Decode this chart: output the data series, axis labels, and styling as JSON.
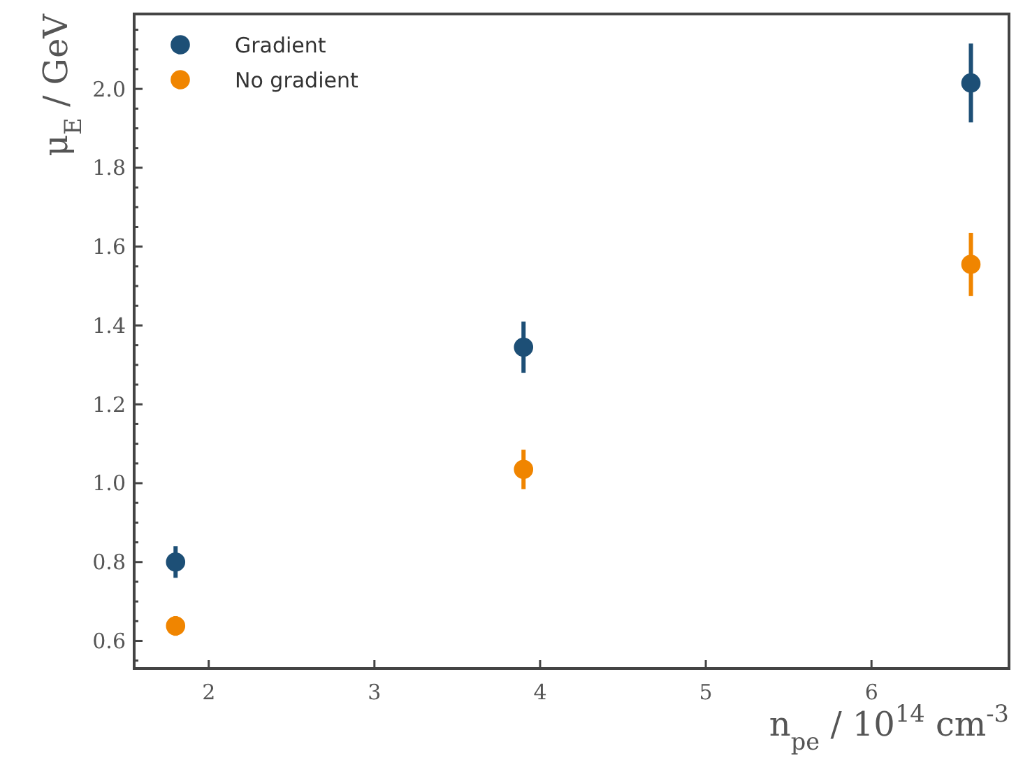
{
  "chart_data": {
    "type": "scatter",
    "xlabel": "n$_{pe}$ / 10$^{14}$ cm$^{-3}$",
    "ylabel": "μ$_{E}$ / GeV",
    "x": [
      1.8,
      3.9,
      6.6
    ],
    "series": [
      {
        "name": "Gradient",
        "color": "#1d4f76",
        "values": [
          0.8,
          1.345,
          2.015
        ],
        "errors": [
          0.04,
          0.065,
          0.1
        ]
      },
      {
        "name": "No gradient",
        "color": "#f08500",
        "values": [
          0.638,
          1.035,
          1.555
        ],
        "errors": [
          0.025,
          0.05,
          0.08
        ]
      }
    ],
    "xlim": [
      1.55,
      6.83
    ],
    "xticks": [
      2,
      3,
      4,
      5,
      6
    ],
    "ylim": [
      0.53,
      2.19
    ],
    "yticks": [
      {
        "value": 0.55,
        "label": null
      },
      0.6,
      {
        "value": 0.65,
        "label": null
      },
      {
        "value": 0.7,
        "label": null
      },
      {
        "value": 0.75,
        "label": null
      },
      0.8,
      {
        "value": 0.85,
        "label": null
      },
      {
        "value": 0.9,
        "label": null
      },
      {
        "value": 0.95,
        "label": null
      },
      {
        "value": 1,
        "label": "1.0"
      },
      {
        "value": 1.05,
        "label": null
      },
      {
        "value": 1.1,
        "label": null
      },
      {
        "value": 1.15,
        "label": null
      },
      1.2,
      {
        "value": 1.25,
        "label": null
      },
      {
        "value": 1.3,
        "label": null
      },
      {
        "value": 1.35,
        "label": null
      },
      1.4,
      {
        "value": 1.45,
        "label": null
      },
      {
        "value": 1.5,
        "label": null
      },
      {
        "value": 1.55,
        "label": null
      },
      1.6,
      {
        "value": 1.65,
        "label": null
      },
      {
        "value": 1.7,
        "label": null
      },
      {
        "value": 1.75,
        "label": null
      },
      1.8,
      {
        "value": 1.85,
        "label": null
      },
      {
        "value": 1.9,
        "label": null
      },
      {
        "value": 1.95,
        "label": null
      },
      {
        "value": 2,
        "label": "2.0"
      },
      {
        "value": 2.05,
        "label": null
      },
      {
        "value": 2.1,
        "label": null
      },
      {
        "value": 2.15,
        "label": null
      }
    ],
    "grid": false,
    "legend": "top left",
    "marker": "circle"
  }
}
